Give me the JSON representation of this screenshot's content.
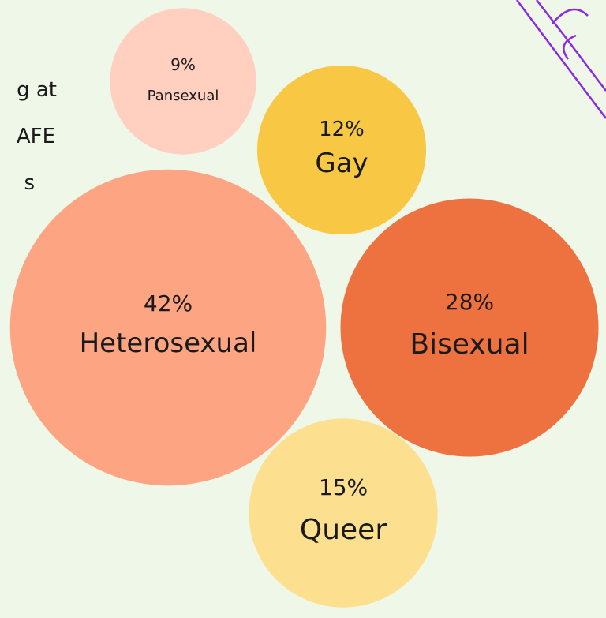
{
  "chart_data": {
    "type": "bubble",
    "categories": [
      "Pansexual",
      "Gay",
      "Heterosexual",
      "Bisexual",
      "Queer"
    ],
    "values": [
      9,
      12,
      42,
      28,
      15
    ],
    "value_labels": [
      "9%",
      "12%",
      "42%",
      "28%",
      "15%"
    ],
    "colors": [
      "#ffcfc0",
      "#f8c845",
      "#fda582",
      "#ee7140",
      "#fde08f"
    ]
  },
  "intro_text_fragments": [
    "g at",
    "AFE",
    "s"
  ]
}
